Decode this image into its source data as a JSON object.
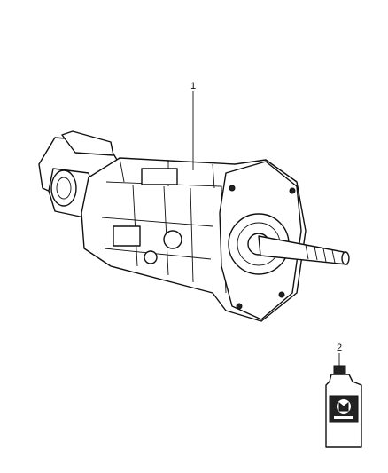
{
  "callouts": [
    {
      "label": "1"
    },
    {
      "label": "2"
    }
  ]
}
